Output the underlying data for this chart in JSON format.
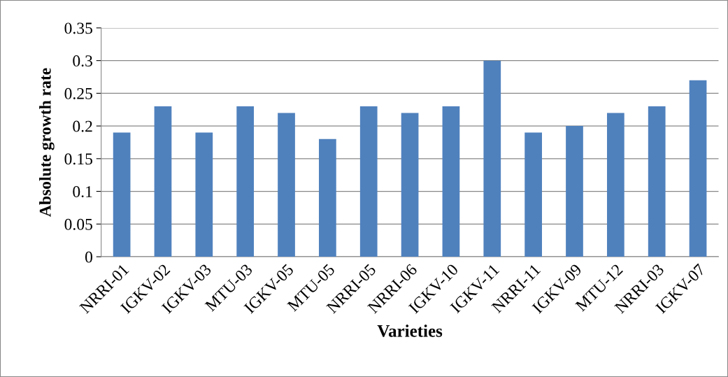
{
  "chart_data": {
    "type": "bar",
    "xlabel": "Varieties",
    "ylabel": "Absolute growth rate",
    "categories": [
      "NRRI-01",
      "IGKV-02",
      "IGKV-03",
      "MTU-03",
      "IGKV-05",
      "MTU-05",
      "NRRI-05",
      "NRRI-06",
      "IGKV-10",
      "IGKV-11",
      "NRRI-11",
      "IGKV-09",
      "MTU-12",
      "NRRI-03",
      "IGKV-07"
    ],
    "values": [
      0.19,
      0.23,
      0.19,
      0.23,
      0.22,
      0.18,
      0.23,
      0.22,
      0.23,
      0.3,
      0.19,
      0.2,
      0.22,
      0.23,
      0.27
    ],
    "color": "#4f81bd",
    "ylim": [
      0,
      0.35
    ],
    "yticks": [
      0,
      0.05,
      0.1,
      0.15,
      0.2,
      0.25,
      0.3,
      0.35
    ],
    "grid": "y"
  }
}
